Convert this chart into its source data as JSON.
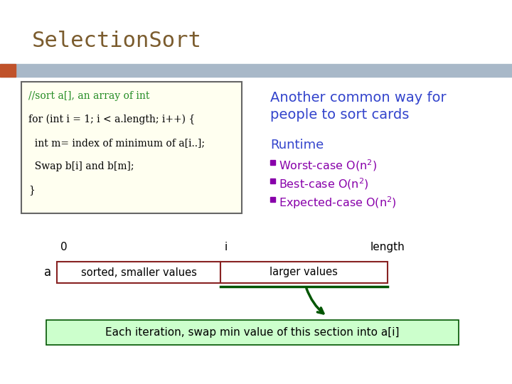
{
  "title": "SelectionSort",
  "title_color": "#7B5C2E",
  "title_fontsize": 22,
  "bg_color": "#FFFFFF",
  "header_bar_color": "#A8B8C8",
  "header_accent_color": "#C0522A",
  "code_lines": [
    "//sort a[], an array of int",
    "for (int i = 1; i < a.length; i++) {",
    "  int m= index of minimum of a[i..];",
    "  Swap b[i] and b[m];",
    "}"
  ],
  "code_comment_color": "#228B22",
  "code_text_color": "#000000",
  "code_bg_color": "#FFFFF0",
  "code_border_color": "#666666",
  "right_top_text_line1": "Another common way for",
  "right_top_text_line2": "people to sort cards",
  "right_top_color": "#3344CC",
  "runtime_title": "Runtime",
  "runtime_title_color": "#3344CC",
  "bullet_items_base": [
    "Worst-case O(n",
    "Best-case O(n",
    "Expected-case O(n"
  ],
  "bullet_color": "#8800AA",
  "bullet_square_color": "#8800AA",
  "array_label": "a",
  "array_label0": "0",
  "array_label_i": "i",
  "array_label_length": "length",
  "array_left_text": "sorted, smaller values",
  "array_right_text": "larger values",
  "array_left_bg": "#FFFFFF",
  "array_right_bg": "#FFFFFF",
  "array_border_color": "#882222",
  "bottom_note": "Each iteration, swap min value of this section into a[i]",
  "bottom_note_bg": "#CCFFCC",
  "bottom_note_color": "#000000",
  "arrow_color": "#005500"
}
